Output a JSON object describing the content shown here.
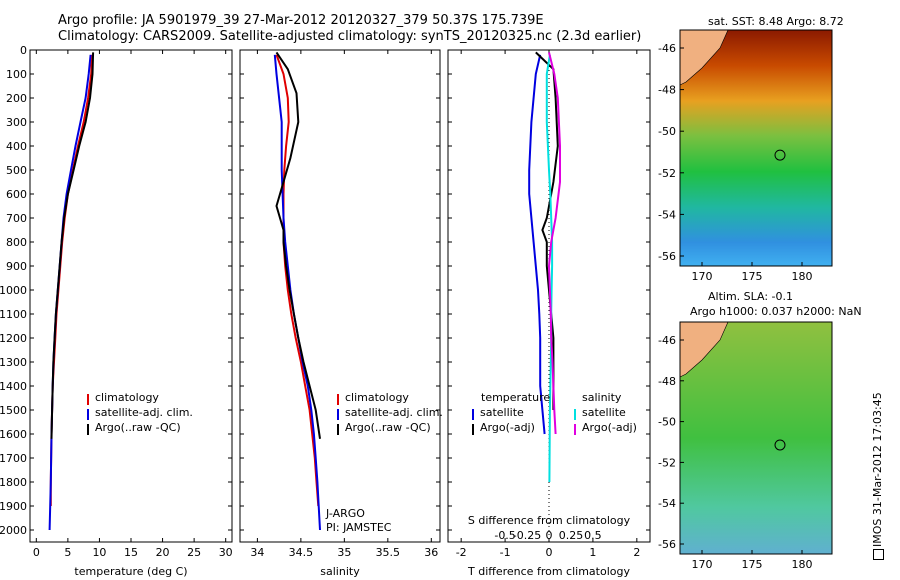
{
  "header": {
    "title_line1": "Argo profile: JA 5901979_39 27-Mar-2012 20120327_379 50.37S 175.739E",
    "title_line2": "Climatology: CARS2009. Satellite-adjusted climatology: synTS_20120325.nc (2.3d earlier)"
  },
  "colors": {
    "climatology": "#e00000",
    "satellite": "#0000e0",
    "argo": "#000000",
    "sat_salinity": "#00e0e0",
    "argo_salinity": "#e000e0"
  },
  "legend_temp": [
    "climatology",
    "satellite-adj. clim.",
    "Argo(..raw -QC)"
  ],
  "legend_sal": [
    "climatology",
    "satellite-adj. clim.",
    "Argo(..raw -QC)"
  ],
  "legend_diff": {
    "temperature": "temperature",
    "salinity": "salinity",
    "sat": "satellite",
    "argo": "Argo(-adj)"
  },
  "notes": {
    "jargo": "J-ARGO",
    "pi": "PI: JAMSTEC"
  },
  "maps": {
    "sst_title": "sat. SST: 8.48 Argo: 8.72",
    "sla_title1": "Altim. SLA: -0.1",
    "sla_title2": "Argo h1000: 0.037 h2000: NaN",
    "lat_ticks": [
      "-46",
      "-48",
      "-50",
      "-52",
      "-54",
      "-56"
    ],
    "lon_ticks": [
      "170",
      "175",
      "180"
    ],
    "imos_label": "IMOS 31-Mar-2012 17:03:45"
  },
  "chart_data": [
    {
      "type": "line",
      "xlabel": "temperature (deg C)",
      "ylabel": "",
      "xlim": [
        -1,
        31
      ],
      "ylim": [
        2050,
        0
      ],
      "xticks": [
        0,
        5,
        10,
        15,
        20,
        25,
        30
      ],
      "yticks": [
        0,
        100,
        200,
        300,
        400,
        500,
        600,
        700,
        800,
        900,
        1000,
        1100,
        1200,
        1300,
        1400,
        1500,
        1600,
        1700,
        1800,
        1900,
        2000
      ],
      "series": [
        {
          "name": "climatology",
          "x": [
            8.8,
            8.7,
            8.2,
            7.5,
            6.6,
            5.8,
            5.0,
            4.5,
            4.1,
            3.8,
            3.5,
            3.2,
            3.0,
            2.8,
            2.6,
            2.5,
            2.4,
            2.3,
            2.3
          ],
          "y": [
            20,
            100,
            200,
            300,
            400,
            500,
            600,
            700,
            800,
            900,
            1000,
            1100,
            1200,
            1300,
            1400,
            1500,
            1600,
            1800,
            1900
          ]
        },
        {
          "name": "satellite-adj. clim.",
          "x": [
            8.6,
            8.3,
            7.8,
            7.0,
            6.2,
            5.5,
            4.8,
            4.3,
            4.0,
            3.7,
            3.4,
            3.1,
            2.9,
            2.7,
            2.6,
            2.5,
            2.4,
            2.3,
            2.2,
            2.1
          ],
          "y": [
            20,
            100,
            200,
            300,
            400,
            500,
            600,
            700,
            800,
            900,
            1000,
            1100,
            1200,
            1300,
            1400,
            1500,
            1600,
            1800,
            1900,
            2000
          ]
        },
        {
          "name": "Argo(..raw -QC)",
          "x": [
            9.0,
            8.9,
            8.5,
            7.8,
            6.8,
            5.9,
            5.0,
            4.4,
            4.0,
            3.7,
            3.4,
            3.1,
            2.9,
            2.7,
            2.6,
            2.5,
            2.4
          ],
          "y": [
            10,
            100,
            200,
            300,
            400,
            500,
            600,
            700,
            800,
            900,
            1000,
            1100,
            1200,
            1300,
            1400,
            1500,
            1620
          ]
        }
      ]
    },
    {
      "type": "line",
      "xlabel": "salinity",
      "ylabel": "",
      "xlim": [
        33.8,
        36.1
      ],
      "ylim": [
        2050,
        0
      ],
      "xticks": [
        34,
        34.5,
        35,
        35.5,
        36
      ],
      "series": [
        {
          "name": "climatology",
          "x": [
            34.22,
            34.3,
            34.35,
            34.36,
            34.33,
            34.31,
            34.3,
            34.3,
            34.3,
            34.32,
            34.35,
            34.39,
            34.44,
            34.5,
            34.55,
            34.6,
            34.63,
            34.66,
            34.68,
            34.7
          ],
          "y": [
            20,
            100,
            200,
            300,
            400,
            500,
            600,
            700,
            800,
            900,
            1000,
            1100,
            1200,
            1300,
            1400,
            1500,
            1600,
            1700,
            1800,
            1900
          ]
        },
        {
          "name": "satellite-adj. clim.",
          "x": [
            34.2,
            34.22,
            34.25,
            34.28,
            34.28,
            34.28,
            34.29,
            34.3,
            34.32,
            34.35,
            34.38,
            34.42,
            34.47,
            34.52,
            34.58,
            34.62,
            34.65,
            34.67,
            34.69,
            34.72
          ],
          "y": [
            20,
            100,
            200,
            300,
            400,
            500,
            600,
            700,
            800,
            900,
            1000,
            1100,
            1200,
            1300,
            1400,
            1500,
            1600,
            1700,
            1800,
            2000
          ]
        },
        {
          "name": "Argo(..raw -QC)",
          "x": [
            34.22,
            34.35,
            34.45,
            34.47,
            34.38,
            34.3,
            34.22,
            34.3,
            34.3,
            34.33,
            34.37,
            34.42,
            34.47,
            34.53,
            34.6,
            34.67,
            34.72
          ],
          "y": [
            10,
            80,
            180,
            300,
            450,
            550,
            650,
            750,
            800,
            900,
            1000,
            1100,
            1200,
            1300,
            1400,
            1500,
            1620
          ]
        }
      ]
    },
    {
      "type": "line",
      "xlabel": "T difference from climatology",
      "ylabel": "",
      "xlim": [
        -2.3,
        2.3
      ],
      "ylim": [
        2050,
        0
      ],
      "xticks": [
        -2,
        -1,
        0,
        1,
        2
      ],
      "secondary_xlabel": "S difference from climatology",
      "secondary_xticks": [
        "-0.5",
        "-0.25",
        "0",
        "0.25",
        "0.5"
      ],
      "series": [
        {
          "name": "temperature satellite",
          "x": [
            -0.2,
            -0.3,
            -0.4,
            -0.45,
            -0.45,
            -0.4,
            -0.35,
            -0.3,
            -0.25,
            -0.22,
            -0.2,
            -0.2,
            -0.2,
            -0.15,
            -0.1
          ],
          "y": [
            20,
            100,
            300,
            500,
            600,
            700,
            800,
            900,
            1000,
            1100,
            1200,
            1300,
            1400,
            1500,
            1600
          ]
        },
        {
          "name": "temperature Argo(-adj)",
          "x": [
            -0.3,
            0.1,
            0.15,
            0.2,
            0.1,
            -0.05,
            -0.15,
            -0.05,
            -0.05,
            0.0,
            0.05,
            0.1,
            0.1,
            0.1,
            0.1
          ],
          "y": [
            10,
            80,
            200,
            400,
            550,
            700,
            750,
            800,
            900,
            1000,
            1100,
            1200,
            1300,
            1400,
            1500
          ]
        },
        {
          "name": "salinity satellite",
          "x": [
            0.02,
            -0.05,
            -0.05,
            0.0,
            0.03,
            0.05,
            0.07,
            0.07,
            0.06,
            0.05,
            0.05,
            0.04,
            0.03,
            0.02,
            0.01
          ],
          "y": [
            20,
            100,
            300,
            500,
            600,
            700,
            800,
            900,
            1000,
            1100,
            1200,
            1300,
            1400,
            1500,
            1800
          ]
        },
        {
          "name": "salinity Argo(-adj)",
          "x": [
            0.0,
            0.12,
            0.2,
            0.25,
            0.25,
            0.15,
            0.05,
            0.0,
            0.02,
            0.04,
            0.05,
            0.08,
            0.1,
            0.12,
            0.15
          ],
          "y": [
            10,
            100,
            200,
            400,
            550,
            700,
            800,
            900,
            1000,
            1100,
            1200,
            1300,
            1400,
            1500,
            1600
          ]
        }
      ]
    }
  ]
}
